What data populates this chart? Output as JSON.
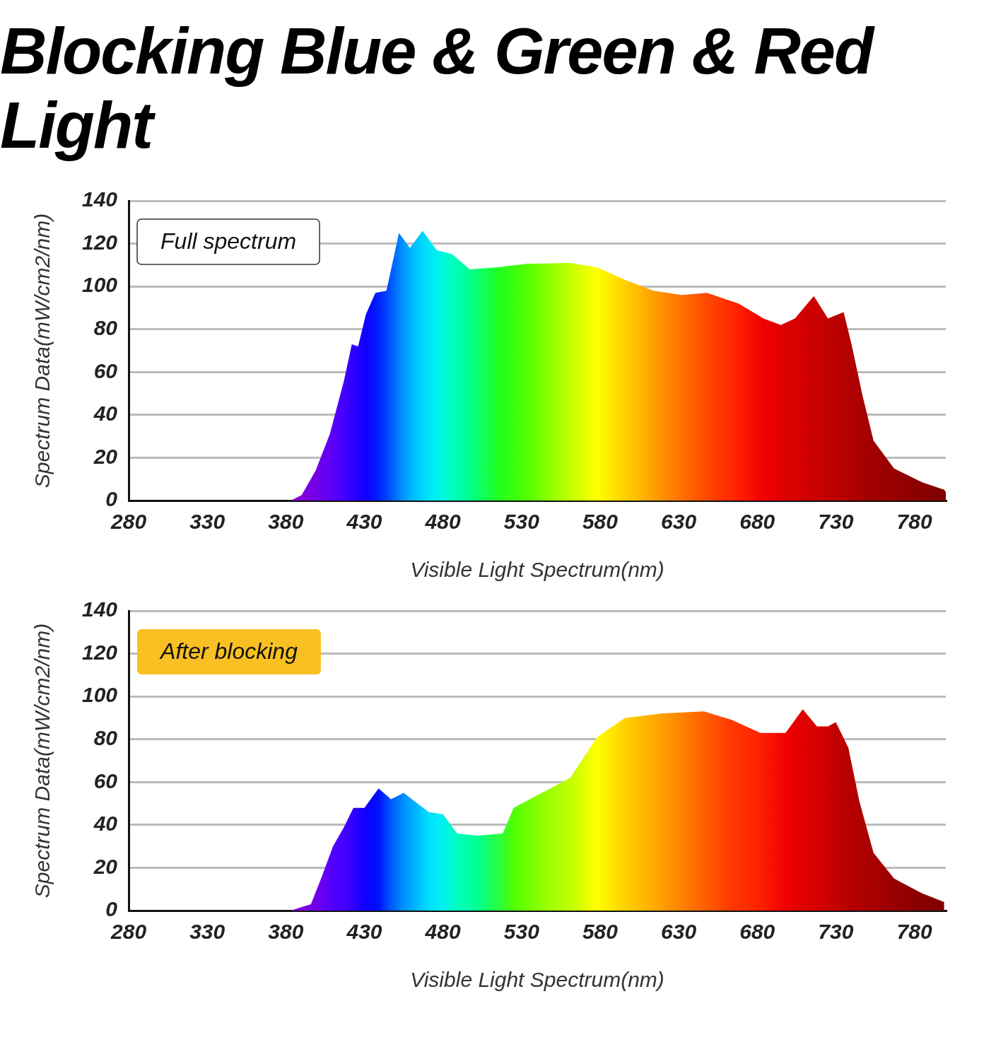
{
  "chart_data": [
    {
      "type": "area",
      "title": "Blocking Blue & Green & Red Light",
      "xlabel": "Visible Light Spectrum(nm)",
      "ylabel": "Spectrum Data(mW/cm2/nm)",
      "annotations": [
        "Full spectrum"
      ],
      "grid": "y",
      "legend": false,
      "xlim": [
        280,
        800
      ],
      "xticks": [
        280,
        330,
        380,
        430,
        480,
        530,
        580,
        630,
        680,
        730,
        780
      ],
      "ylim": [
        0,
        140
      ],
      "yticks": [
        0,
        20,
        40,
        60,
        80,
        100,
        120,
        140
      ],
      "x": [
        383,
        390,
        399,
        408,
        417,
        422,
        426,
        431,
        437,
        444,
        447,
        452,
        459,
        467,
        476,
        486,
        497,
        515,
        533,
        560,
        578,
        596,
        614,
        632,
        648,
        668,
        684,
        695,
        704,
        716,
        725,
        735,
        740,
        747,
        754,
        767,
        785,
        799,
        800
      ],
      "values": [
        0,
        2.5,
        14,
        31,
        56,
        73,
        72,
        87,
        97,
        98,
        108,
        125,
        118,
        126,
        117,
        115,
        108,
        109,
        110.5,
        111,
        109,
        103,
        98,
        96,
        97,
        92,
        85,
        82,
        85,
        95.5,
        85,
        88,
        73,
        49,
        28,
        15,
        8.5,
        5,
        4
      ],
      "colors": [
        "#8a00c8",
        "#8000d8",
        "#7400e8",
        "#6000f4",
        "#4400ff",
        "#3000ff",
        "#2200ff",
        "#1000ff",
        "#0018ff",
        "#0040ff",
        "#0058ff",
        "#0080ff",
        "#00b0ff",
        "#00d8ff",
        "#00f0f0",
        "#00ffc0",
        "#00ff90",
        "#20ff20",
        "#50ff00",
        "#c0ff00",
        "#ffff00",
        "#ffd000",
        "#ffa000",
        "#ff7000",
        "#ff4800",
        "#ff2000",
        "#f00000",
        "#e00000",
        "#d80000",
        "#cc0000",
        "#c00000",
        "#b80000",
        "#b00000",
        "#a80000",
        "#a00000",
        "#980000",
        "#880000",
        "#800000",
        "#800000"
      ]
    },
    {
      "type": "area",
      "xlabel": "Visible Light Spectrum(nm)",
      "ylabel": "Spectrum Data(mW/cm2/nm)",
      "annotations": [
        "After blocking"
      ],
      "grid": "y",
      "legend": false,
      "xlim": [
        280,
        800
      ],
      "xticks": [
        280,
        330,
        380,
        430,
        480,
        530,
        580,
        630,
        680,
        730,
        780
      ],
      "ylim": [
        0,
        140
      ],
      "yticks": [
        0,
        20,
        40,
        60,
        80,
        100,
        120,
        140
      ],
      "x": [
        383,
        396,
        403,
        410,
        417,
        423,
        430,
        439,
        447,
        455,
        471,
        480,
        489,
        502,
        518,
        525,
        543,
        561,
        578,
        596,
        619,
        646,
        664,
        682,
        698,
        709,
        718,
        725,
        730,
        738,
        745,
        754,
        767,
        785,
        799
      ],
      "values": [
        0,
        3,
        16,
        30,
        39,
        48,
        48,
        57,
        52,
        55,
        46,
        45,
        36,
        35,
        36,
        48,
        55,
        62,
        81,
        90,
        92,
        93,
        89,
        83,
        83,
        94,
        86,
        86,
        88,
        76,
        51,
        27,
        15,
        8,
        4
      ],
      "colors": [
        "#8a00c8",
        "#7400e8",
        "#6800f0",
        "#5000ff",
        "#4400ff",
        "#3000ff",
        "#1000ff",
        "#0010ff",
        "#0058ff",
        "#0090ff",
        "#00e0ff",
        "#00f0f0",
        "#00ffc0",
        "#00ff90",
        "#30ff30",
        "#50ff00",
        "#90ff00",
        "#c0ff00",
        "#ffff00",
        "#ffd000",
        "#ffa000",
        "#ff6000",
        "#ff3800",
        "#ff2000",
        "#f00000",
        "#e00000",
        "#d80000",
        "#cc0000",
        "#c00000",
        "#b80000",
        "#b00000",
        "#a80000",
        "#980000",
        "#880000",
        "#800000"
      ]
    }
  ]
}
